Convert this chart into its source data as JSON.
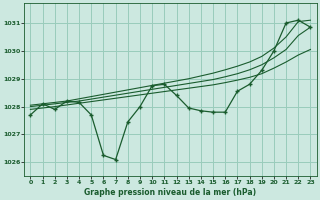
{
  "title": "Graphe pression niveau de la mer (hPa)",
  "background_color": "#cce8e0",
  "plot_bg_color": "#cce8e0",
  "grid_color": "#99ccbb",
  "line_color": "#1a5c2e",
  "xlim": [
    -0.5,
    23.5
  ],
  "ylim": [
    1025.5,
    1031.7
  ],
  "yticks": [
    1026,
    1027,
    1028,
    1029,
    1030,
    1031
  ],
  "xticks": [
    0,
    1,
    2,
    3,
    4,
    5,
    6,
    7,
    8,
    9,
    10,
    11,
    12,
    13,
    14,
    15,
    16,
    17,
    18,
    19,
    20,
    21,
    22,
    23
  ],
  "series_main": [
    1027.7,
    1028.1,
    1027.9,
    1028.2,
    1028.15,
    1027.7,
    1026.25,
    1026.1,
    1027.45,
    1028.0,
    1028.75,
    1028.8,
    1028.4,
    1027.95,
    1027.85,
    1027.8,
    1027.8,
    1028.55,
    1028.8,
    1029.3,
    1030.0,
    1031.0,
    1031.1,
    1030.85
  ],
  "series_smooth1": [
    1028.05,
    1028.1,
    1028.15,
    1028.2,
    1028.28,
    1028.36,
    1028.44,
    1028.52,
    1028.6,
    1028.68,
    1028.76,
    1028.84,
    1028.92,
    1029.0,
    1029.1,
    1029.2,
    1029.32,
    1029.45,
    1029.6,
    1029.8,
    1030.1,
    1030.5,
    1031.05,
    1031.1
  ],
  "series_smooth2": [
    1028.0,
    1028.05,
    1028.1,
    1028.15,
    1028.2,
    1028.27,
    1028.34,
    1028.41,
    1028.48,
    1028.55,
    1028.62,
    1028.69,
    1028.76,
    1028.83,
    1028.9,
    1028.97,
    1029.07,
    1029.18,
    1029.32,
    1029.5,
    1029.75,
    1030.05,
    1030.55,
    1030.85
  ],
  "series_trend": [
    1027.9,
    1027.95,
    1028.0,
    1028.06,
    1028.12,
    1028.18,
    1028.24,
    1028.3,
    1028.36,
    1028.42,
    1028.48,
    1028.54,
    1028.6,
    1028.66,
    1028.72,
    1028.78,
    1028.86,
    1028.95,
    1029.05,
    1029.18,
    1029.38,
    1029.6,
    1029.85,
    1030.05
  ]
}
